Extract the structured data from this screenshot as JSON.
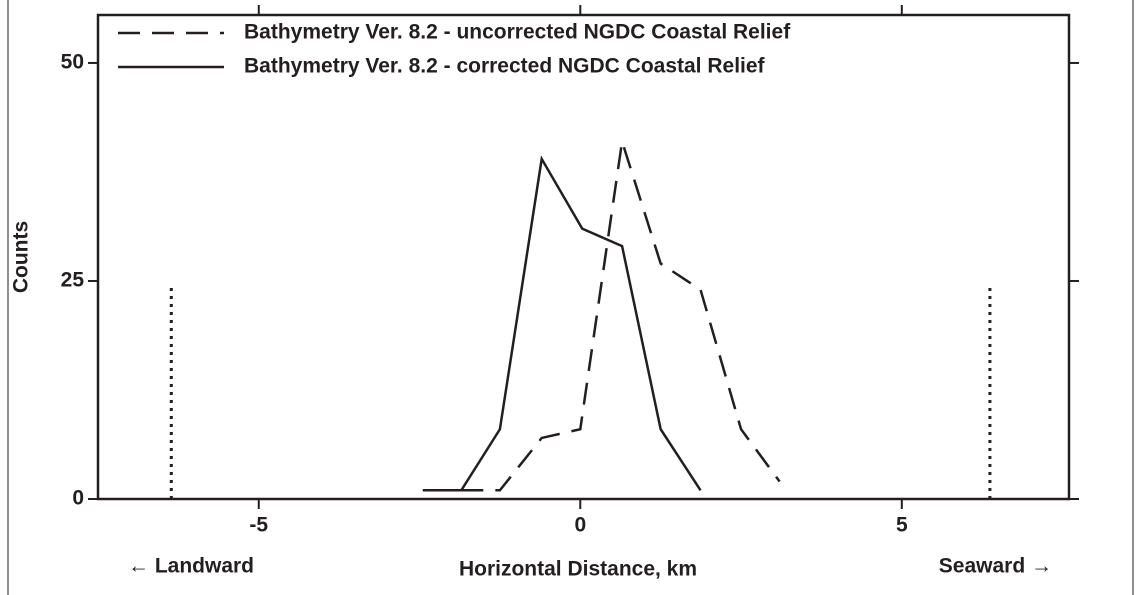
{
  "chart_data": {
    "type": "line",
    "xlabel": "Horizontal Distance, km",
    "ylabel": "Counts",
    "left_annotation": "← Landward",
    "right_annotation": "Seaward →",
    "xlim": [
      -7.5,
      7.6
    ],
    "ylim": [
      0,
      55.5
    ],
    "xticks": [
      -5,
      0,
      5
    ],
    "yticks": [
      0,
      25,
      50
    ],
    "reference_lines": {
      "x": [
        -6.36,
        6.37
      ],
      "top": 24.5
    },
    "color": "#231f20",
    "series": [
      {
        "name": "Bathymetry Ver. 8.2 - uncorrected NGDC Coastal Relief",
        "dash": true,
        "x": [
          -1.85,
          -1.25,
          -0.6,
          0.0,
          0.65,
          1.25,
          1.87,
          2.5,
          3.1
        ],
        "values": [
          1,
          1,
          7,
          8,
          41,
          27,
          24,
          8,
          2
        ]
      },
      {
        "name": "Bathymetry Ver. 8.2 - corrected NGDC Coastal Relief",
        "dash": false,
        "x": [
          -2.45,
          -1.85,
          -1.25,
          -0.6,
          0.03,
          0.65,
          1.25,
          1.87
        ],
        "values": [
          1,
          1,
          8,
          39,
          31,
          29,
          8,
          1
        ]
      }
    ]
  }
}
